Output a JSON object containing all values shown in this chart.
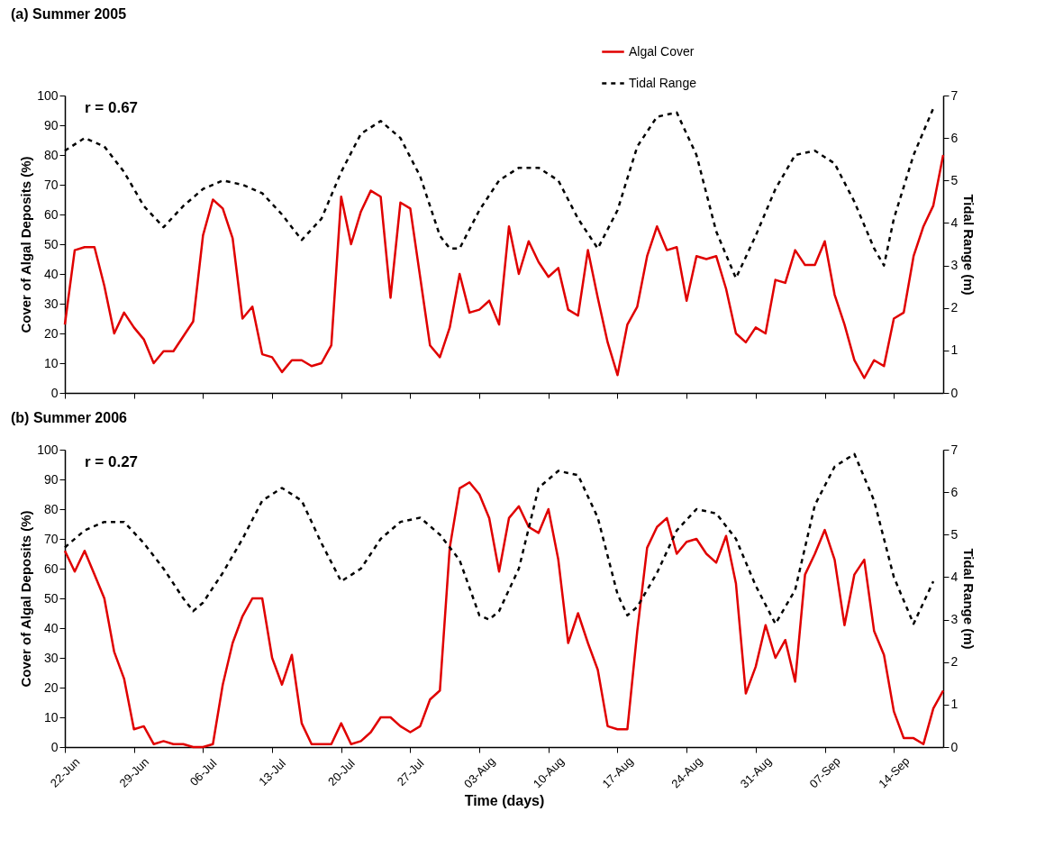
{
  "chart_data": [
    {
      "type": "line",
      "title": "(a) Summer 2005",
      "ylabel": "Cover of Algal Deposits (%)",
      "y2label": "Tidal Range (m)",
      "annotations": [
        "r = 0.67"
      ],
      "legend": "top right",
      "tick_labels": "y",
      "x": [
        "--06-22",
        "--06-23",
        "--06-24",
        "--06-25",
        "--06-26",
        "--06-27",
        "--06-28",
        "--06-29",
        "--06-30",
        "--07-01",
        "--07-02",
        "--07-03",
        "--07-04",
        "--07-05",
        "--07-06",
        "--07-07",
        "--07-08",
        "--07-09",
        "--07-10",
        "--07-11",
        "--07-12",
        "--07-13",
        "--07-14",
        "--07-15",
        "--07-16",
        "--07-17",
        "--07-18",
        "--07-19",
        "--07-20",
        "--07-21",
        "--07-22",
        "--07-23",
        "--07-24",
        "--07-25",
        "--07-26",
        "--07-27",
        "--07-28",
        "--07-29",
        "--07-30",
        "--07-31",
        "--08-01",
        "--08-02",
        "--08-03",
        "--08-04",
        "--08-05",
        "--08-06",
        "--08-07",
        "--08-08",
        "--08-09",
        "--08-10",
        "--08-11",
        "--08-12",
        "--08-13",
        "--08-14",
        "--08-15",
        "--08-16",
        "--08-17",
        "--08-18",
        "--08-19",
        "--08-20",
        "--08-21",
        "--08-22",
        "--08-23",
        "--08-24",
        "--08-25",
        "--08-26",
        "--08-27",
        "--08-28",
        "--08-29",
        "--08-30",
        "--08-31",
        "--09-01",
        "--09-02",
        "--09-03",
        "--09-04",
        "--09-05",
        "--09-06",
        "--09-07",
        "--09-08",
        "--09-09",
        "--09-10",
        "--09-11",
        "--09-12",
        "--09-13",
        "--09-14",
        "--09-15",
        "--09-16",
        "--09-17",
        "--09-18",
        "--09-19"
      ],
      "series": [
        {
          "name": "Algal Cover",
          "color": "#e00000",
          "line_style": "solid",
          "values": [
            23,
            48,
            49,
            49,
            36,
            20,
            27,
            22,
            18,
            10,
            14,
            14,
            19,
            24,
            53,
            65,
            62,
            52,
            25,
            29,
            13,
            12,
            7,
            11,
            11,
            9,
            10,
            16,
            66,
            50,
            61,
            68,
            66,
            32,
            64,
            62,
            39,
            16,
            12,
            22,
            40,
            27,
            28,
            31,
            23,
            56,
            40,
            51,
            44,
            39,
            42,
            28,
            26,
            48,
            32,
            17,
            6,
            23,
            29,
            46,
            56,
            48,
            49,
            31,
            46,
            45,
            46,
            35,
            20,
            17,
            22,
            20,
            38,
            37,
            48,
            43,
            43,
            51,
            33,
            23,
            11,
            5,
            11,
            9,
            25,
            27,
            46,
            56,
            63,
            80
          ]
        },
        {
          "name": "Tidal Range",
          "color": "#000000",
          "line_style": "dashed",
          "axis": "y2",
          "x": [
            "--06-22",
            "--06-24",
            "--06-26",
            "--06-28",
            "--06-30",
            "--07-02",
            "--07-04",
            "--07-06",
            "--07-08",
            "--07-10",
            "--07-12",
            "--07-14",
            "--07-16",
            "--07-18",
            "--07-20",
            "--07-22",
            "--07-24",
            "--07-26",
            "--07-28",
            "--07-30",
            "--07-31",
            "--08-01",
            "--08-03",
            "--08-05",
            "--08-07",
            "--08-09",
            "--08-11",
            "--08-13",
            "--08-15",
            "--08-17",
            "--08-19",
            "--08-21",
            "--08-23",
            "--08-25",
            "--08-27",
            "--08-29",
            "--08-31",
            "--09-02",
            "--09-04",
            "--09-06",
            "--09-08",
            "--09-10",
            "--09-12",
            "--09-13",
            "--09-14",
            "--09-16",
            "--09-18"
          ],
          "values": [
            5.7,
            6.0,
            5.8,
            5.2,
            4.4,
            3.9,
            4.4,
            4.8,
            5.0,
            4.9,
            4.7,
            4.2,
            3.6,
            4.1,
            5.2,
            6.1,
            6.4,
            6.0,
            5.1,
            3.7,
            3.4,
            3.4,
            4.3,
            5.0,
            5.3,
            5.3,
            5.0,
            4.1,
            3.4,
            4.3,
            5.8,
            6.5,
            6.6,
            5.6,
            3.8,
            2.7,
            3.7,
            4.8,
            5.6,
            5.7,
            5.4,
            4.5,
            3.4,
            3.0,
            4.1,
            5.6,
            6.7
          ]
        }
      ],
      "xlim": [
        "--06-22",
        "--09-19"
      ],
      "xticks": [
        {
          "value": "--06-22",
          "label": "22-Jun"
        },
        {
          "value": "--06-29",
          "label": "29-Jun"
        },
        {
          "value": "--07-06",
          "label": "06-Jul"
        },
        {
          "value": "--07-13",
          "label": "13-Jul"
        },
        {
          "value": "--07-20",
          "label": "20-Jul"
        },
        {
          "value": "--07-27",
          "label": "27-Jul"
        },
        {
          "value": "--08-03",
          "label": "03-Aug"
        },
        {
          "value": "--08-10",
          "label": "10-Aug"
        },
        {
          "value": "--08-17",
          "label": "17-Aug"
        },
        {
          "value": "--08-24",
          "label": "24-Aug"
        },
        {
          "value": "--08-31",
          "label": "31-Aug"
        },
        {
          "value": "--09-07",
          "label": "07-Sep"
        },
        {
          "value": "--09-14",
          "label": "14-Sep"
        }
      ],
      "ylim": [
        0,
        100
      ],
      "yticks": [
        0,
        10,
        20,
        30,
        40,
        50,
        60,
        70,
        80,
        90,
        100
      ],
      "y2lim": [
        0,
        7
      ],
      "y2ticks": [
        0,
        1,
        2,
        3,
        4,
        5,
        6,
        7
      ]
    },
    {
      "type": "line",
      "title": "(b) Summer 2006",
      "xlabel": "Time (days)",
      "ylabel": "Cover of Algal Deposits (%)",
      "y2label": "Tidal Range (m)",
      "annotations": [
        "r = 0.27"
      ],
      "x": [
        "--06-22",
        "--06-23",
        "--06-24",
        "--06-25",
        "--06-26",
        "--06-27",
        "--06-28",
        "--06-29",
        "--06-30",
        "--07-01",
        "--07-02",
        "--07-03",
        "--07-04",
        "--07-05",
        "--07-06",
        "--07-07",
        "--07-08",
        "--07-09",
        "--07-10",
        "--07-11",
        "--07-12",
        "--07-13",
        "--07-14",
        "--07-15",
        "--07-16",
        "--07-17",
        "--07-18",
        "--07-19",
        "--07-20",
        "--07-21",
        "--07-22",
        "--07-23",
        "--07-24",
        "--07-25",
        "--07-26",
        "--07-27",
        "--07-28",
        "--07-29",
        "--07-30",
        "--07-31",
        "--08-01",
        "--08-02",
        "--08-03",
        "--08-04",
        "--08-05",
        "--08-06",
        "--08-07",
        "--08-08",
        "--08-09",
        "--08-10",
        "--08-11",
        "--08-12",
        "--08-13",
        "--08-14",
        "--08-15",
        "--08-16",
        "--08-17",
        "--08-18",
        "--08-19",
        "--08-20",
        "--08-21",
        "--08-22",
        "--08-23",
        "--08-24",
        "--08-25",
        "--08-26",
        "--08-27",
        "--08-28",
        "--08-29",
        "--08-30",
        "--08-31",
        "--09-01",
        "--09-02",
        "--09-03",
        "--09-04",
        "--09-05",
        "--09-06",
        "--09-07",
        "--09-08",
        "--09-09",
        "--09-10",
        "--09-11",
        "--09-12",
        "--09-13",
        "--09-14",
        "--09-15",
        "--09-16",
        "--09-17",
        "--09-18",
        "--09-19"
      ],
      "series": [
        {
          "color": "#e00000",
          "line_style": "solid",
          "values": [
            66,
            59,
            66,
            58,
            50,
            32,
            23,
            6,
            7,
            1,
            2,
            1,
            1,
            0,
            0,
            1,
            21,
            35,
            44,
            50,
            50,
            30,
            21,
            31,
            8,
            1,
            1,
            1,
            8,
            1,
            2,
            5,
            10,
            10,
            7,
            5,
            7,
            16,
            19,
            67,
            87,
            89,
            85,
            77,
            59,
            77,
            81,
            74,
            72,
            80,
            63,
            35,
            45,
            35,
            26,
            7,
            6,
            6,
            39,
            67,
            74,
            77,
            65,
            69,
            70,
            65,
            62,
            71,
            55,
            18,
            27,
            41,
            30,
            36,
            22,
            58,
            65,
            73,
            63,
            41,
            58,
            63,
            39,
            31,
            12,
            3,
            3,
            1,
            13,
            19
          ]
        },
        {
          "color": "#000000",
          "line_style": "dashed",
          "axis": "y2",
          "x": [
            "--06-22",
            "--06-24",
            "--06-26",
            "--06-28",
            "--06-30",
            "--07-02",
            "--07-04",
            "--07-05",
            "--07-06",
            "--07-08",
            "--07-10",
            "--07-12",
            "--07-14",
            "--07-16",
            "--07-18",
            "--07-20",
            "--07-22",
            "--07-24",
            "--07-26",
            "--07-28",
            "--07-30",
            "--08-01",
            "--08-03",
            "--08-04",
            "--08-05",
            "--08-07",
            "--08-09",
            "--08-11",
            "--08-13",
            "--08-15",
            "--08-17",
            "--08-18",
            "--08-19",
            "--08-21",
            "--08-23",
            "--08-25",
            "--08-27",
            "--08-29",
            "--08-31",
            "--09-02",
            "--09-04",
            "--09-06",
            "--09-08",
            "--09-10",
            "--09-12",
            "--09-14",
            "--09-16",
            "--09-18"
          ],
          "values": [
            4.7,
            5.1,
            5.3,
            5.3,
            4.8,
            4.2,
            3.5,
            3.2,
            3.4,
            4.1,
            4.9,
            5.8,
            6.1,
            5.8,
            4.8,
            3.9,
            4.2,
            4.9,
            5.3,
            5.4,
            5.0,
            4.4,
            3.1,
            3.0,
            3.2,
            4.2,
            6.1,
            6.5,
            6.4,
            5.4,
            3.6,
            3.1,
            3.3,
            4.1,
            5.1,
            5.6,
            5.5,
            4.9,
            3.8,
            2.9,
            3.7,
            5.7,
            6.6,
            6.9,
            5.8,
            4.0,
            2.9,
            3.9
          ]
        }
      ],
      "xlim": [
        "--06-22",
        "--09-19"
      ],
      "xticks": [
        {
          "value": "--06-22",
          "label": "22-Jun"
        },
        {
          "value": "--06-29",
          "label": "29-Jun"
        },
        {
          "value": "--07-06",
          "label": "06-Jul"
        },
        {
          "value": "--07-13",
          "label": "13-Jul"
        },
        {
          "value": "--07-20",
          "label": "20-Jul"
        },
        {
          "value": "--07-27",
          "label": "27-Jul"
        },
        {
          "value": "--08-03",
          "label": "03-Aug"
        },
        {
          "value": "--08-10",
          "label": "10-Aug"
        },
        {
          "value": "--08-17",
          "label": "17-Aug"
        },
        {
          "value": "--08-24",
          "label": "24-Aug"
        },
        {
          "value": "--08-31",
          "label": "31-Aug"
        },
        {
          "value": "--09-07",
          "label": "07-Sep"
        },
        {
          "value": "--09-14",
          "label": "14-Sep"
        }
      ],
      "ylim": [
        0,
        100
      ],
      "yticks": [
        0,
        10,
        20,
        30,
        40,
        50,
        60,
        70,
        80,
        90,
        100
      ],
      "y2lim": [
        0,
        7
      ],
      "y2ticks": [
        0,
        1,
        2,
        3,
        4,
        5,
        6,
        7
      ]
    }
  ]
}
